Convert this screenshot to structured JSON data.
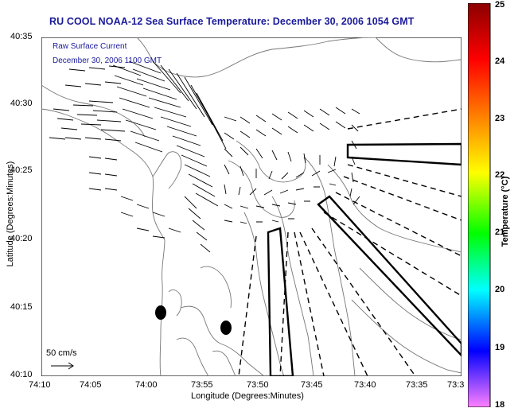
{
  "title": "RU COOL  NOAA-12  Sea Surface Temperature:  December 30, 2006 1054 GMT",
  "inset": {
    "line1": "Raw Surface Current",
    "line2": "December 30, 2006 1100 GMT"
  },
  "axes": {
    "ylabel": "Latitude (Degrees:Minutes)",
    "xlabel": "Longitude (Degrees:Minutes)",
    "yticks": [
      "40:35",
      "40:30",
      "40:25",
      "40:20",
      "40:15",
      "40:10"
    ],
    "xticks": [
      "74:10",
      "74:05",
      "74:00",
      "73:55",
      "73:50",
      "73:45",
      "73:40",
      "73:35",
      "73:3"
    ]
  },
  "scale": {
    "label": "50 cm/s"
  },
  "colorbar": {
    "title": "Temperature (°C)",
    "ticks": [
      "25",
      "24",
      "23",
      "22",
      "21",
      "20",
      "19",
      "18"
    ],
    "colors": [
      "#8b0000",
      "#ff0000",
      "#ff8000",
      "#ffff00",
      "#00ff00",
      "#00ffff",
      "#0000ff",
      "#ff80ff"
    ]
  },
  "colors": {
    "title": "#1a1a9a",
    "inset": "#1a1a9a",
    "contour": "#777777"
  }
}
